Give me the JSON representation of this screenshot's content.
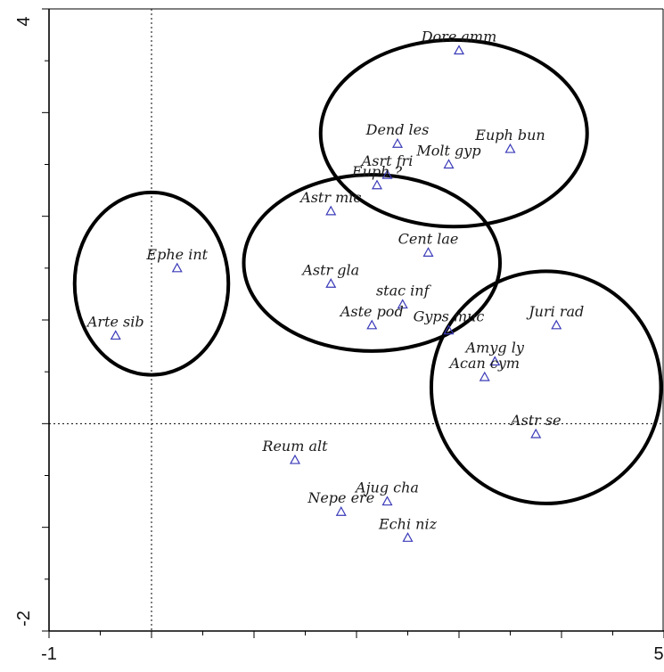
{
  "chart_data": {
    "type": "scatter",
    "title": "",
    "xlabel": "",
    "ylabel": "",
    "xlim": [
      -1,
      5
    ],
    "ylim": [
      -2,
      4
    ],
    "x_ticks": [
      "-1",
      "5"
    ],
    "y_ticks": [
      "4",
      "-2"
    ],
    "reference_lines": {
      "x": 0,
      "y": 0
    },
    "marker": "open-triangle",
    "marker_color": "#3a3ab8",
    "points": [
      {
        "label": "Dore amm",
        "x": 3.0,
        "y": 3.6
      },
      {
        "label": "Dend les",
        "x": 2.4,
        "y": 2.7
      },
      {
        "label": "Euph bun",
        "x": 3.5,
        "y": 2.65
      },
      {
        "label": "Molt gyp",
        "x": 2.9,
        "y": 2.5
      },
      {
        "label": "Asrt fri",
        "x": 2.3,
        "y": 2.4
      },
      {
        "label": "Euph ?",
        "x": 2.2,
        "y": 2.3
      },
      {
        "label": "Astr mic",
        "x": 1.75,
        "y": 2.05
      },
      {
        "label": "Cent lae",
        "x": 2.7,
        "y": 1.65
      },
      {
        "label": "Ephe int",
        "x": 0.25,
        "y": 1.5
      },
      {
        "label": "Astr gla",
        "x": 1.75,
        "y": 1.35
      },
      {
        "label": "stac inf",
        "x": 2.45,
        "y": 1.15
      },
      {
        "label": "Aste pod",
        "x": 2.15,
        "y": 0.95
      },
      {
        "label": "Gyps muc",
        "x": 2.9,
        "y": 0.9
      },
      {
        "label": "Juri rad",
        "x": 3.95,
        "y": 0.95
      },
      {
        "label": "Arte sib",
        "x": -0.35,
        "y": 0.85
      },
      {
        "label": "Amyg ly",
        "x": 3.35,
        "y": 0.6
      },
      {
        "label": "Acan cym",
        "x": 3.25,
        "y": 0.45
      },
      {
        "label": "Astr se",
        "x": 3.75,
        "y": -0.1
      },
      {
        "label": "Reum alt",
        "x": 1.4,
        "y": -0.35
      },
      {
        "label": "Ajug cha",
        "x": 2.3,
        "y": -0.75
      },
      {
        "label": "Nepe ere",
        "x": 1.85,
        "y": -0.85
      },
      {
        "label": "Echi niz",
        "x": 2.5,
        "y": -1.1
      }
    ],
    "groups": [
      {
        "cx": 2.95,
        "cy": 2.8,
        "rx": 1.3,
        "ry": 0.9
      },
      {
        "cx": 2.15,
        "cy": 1.55,
        "rx": 1.25,
        "ry": 0.85
      },
      {
        "cx": 3.85,
        "cy": 0.35,
        "rx": 1.12,
        "ry": 1.12
      },
      {
        "cx": 0.0,
        "cy": 1.35,
        "rx": 0.75,
        "ry": 0.88
      }
    ]
  }
}
